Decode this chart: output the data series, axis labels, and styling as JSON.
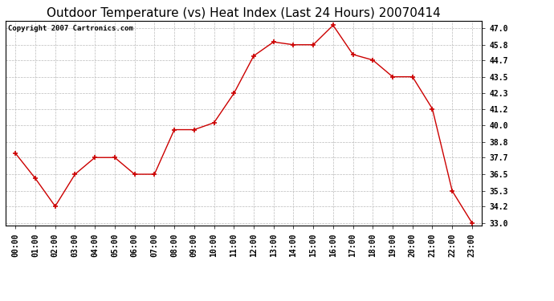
{
  "title": "Outdoor Temperature (vs) Heat Index (Last 24 Hours) 20070414",
  "copyright": "Copyright 2007 Cartronics.com",
  "x_labels": [
    "00:00",
    "01:00",
    "02:00",
    "03:00",
    "04:00",
    "05:00",
    "06:00",
    "07:00",
    "08:00",
    "09:00",
    "10:00",
    "11:00",
    "12:00",
    "13:00",
    "14:00",
    "15:00",
    "16:00",
    "17:00",
    "18:00",
    "19:00",
    "20:00",
    "21:00",
    "22:00",
    "23:00"
  ],
  "y_values": [
    38.0,
    36.2,
    34.2,
    36.5,
    37.7,
    37.7,
    36.5,
    36.5,
    39.7,
    39.7,
    40.2,
    42.3,
    45.0,
    46.0,
    45.8,
    45.8,
    47.2,
    45.1,
    44.7,
    43.5,
    43.5,
    41.2,
    35.3,
    33.0
  ],
  "line_color": "#cc0000",
  "marker": "+",
  "marker_size": 4,
  "bg_color": "#ffffff",
  "plot_bg_color": "#ffffff",
  "grid_color": "#bbbbbb",
  "y_min": 33.0,
  "y_max": 47.0,
  "y_ticks": [
    33.0,
    34.2,
    35.3,
    36.5,
    37.7,
    38.8,
    40.0,
    41.2,
    42.3,
    43.5,
    44.7,
    45.8,
    47.0
  ],
  "title_fontsize": 11,
  "tick_fontsize": 7,
  "copyright_fontsize": 6.5
}
